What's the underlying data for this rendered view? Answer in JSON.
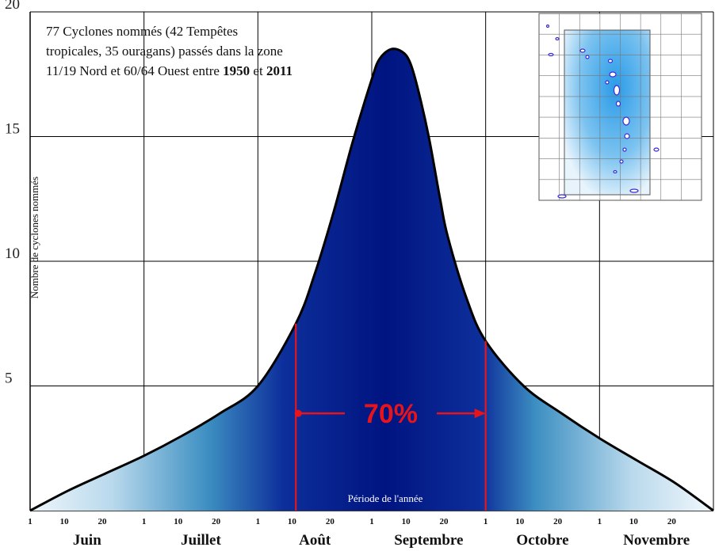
{
  "chart_data": {
    "type": "area",
    "title_lines": [
      "77 Cyclones nommés  (42 Tempêtes",
      "tropicales, 35 ouragans) passés dans la zone"
    ],
    "title_line3": {
      "prefix": "11/19 Nord et 60/64 Ouest entre ",
      "year_start": "1950",
      "middle": " et ",
      "year_end": "2011"
    },
    "ylabel": "Nombre de cyclones nommés",
    "xlabel": "Période de l'année",
    "yticks": [
      "5",
      "10",
      "15",
      "20"
    ],
    "ylim": [
      0,
      20
    ],
    "grid": true,
    "x_day_ticks": [
      "1",
      "10",
      "20",
      "1",
      "10",
      "20",
      "1",
      "10",
      "20",
      "1",
      "10",
      "20",
      "1",
      "10",
      "20",
      "1",
      "10",
      "20"
    ],
    "months": [
      "Juin",
      "Juillet",
      "Août",
      "Septembre",
      "Octobre",
      "Novembre"
    ],
    "x": [
      0,
      10,
      20,
      30,
      40,
      50,
      60,
      70,
      75,
      80,
      85,
      90,
      92,
      95,
      98,
      100,
      102,
      105,
      108,
      110,
      115,
      120,
      130,
      140,
      150,
      160,
      170,
      180
    ],
    "y": [
      0,
      0.8,
      1.5,
      2.2,
      3.0,
      3.9,
      5.0,
      7.5,
      9.5,
      12.0,
      14.8,
      17.3,
      18.1,
      18.5,
      18.4,
      18.0,
      17.0,
      15.0,
      12.5,
      11.0,
      8.5,
      6.8,
      5.0,
      3.9,
      2.9,
      2.0,
      1.1,
      0
    ],
    "highlight": {
      "label": "70%",
      "x_start": 70,
      "x_end": 120
    }
  },
  "colors": {
    "curve": "#000000",
    "grid": "#000000",
    "peak_fill": "#001a8c",
    "edge_fill": "#cfe6f5",
    "highlight": "#e8141c",
    "map_water": "#2a9be8"
  },
  "inset_map": {
    "alt": "carte de la zone 11/19 Nord 60/64 Ouest"
  }
}
